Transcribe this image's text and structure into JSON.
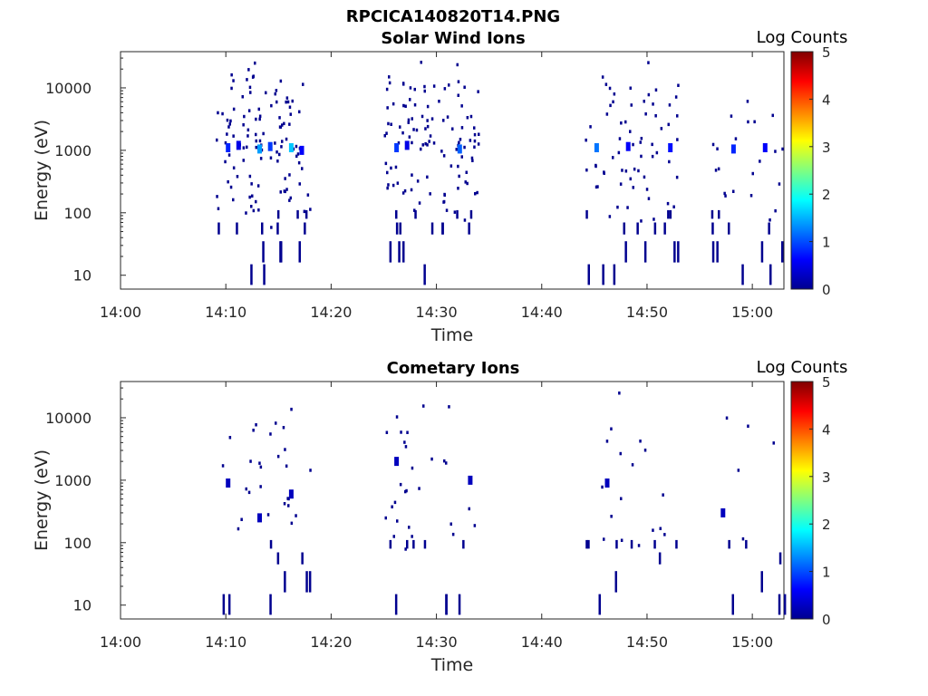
{
  "figure": {
    "filename_title": "RPCICA140820T14.PNG"
  },
  "colorbar": {
    "label": "Log Counts",
    "range": [
      0,
      5
    ],
    "ticks": [
      "0",
      "1",
      "2",
      "3",
      "4",
      "5"
    ],
    "colormap": "jet"
  },
  "chart_data": [
    {
      "type": "heatmap",
      "title": "Solar Wind Ions",
      "xlabel": "Time",
      "ylabel": "Energy (eV)",
      "xlim": [
        "14:00",
        "15:03"
      ],
      "ylim": [
        6,
        38000
      ],
      "yscale": "log",
      "x_ticks": [
        "14:00",
        "14:10",
        "14:20",
        "14:30",
        "14:40",
        "14:50",
        "15:00"
      ],
      "y_ticks": [
        "10",
        "100",
        "1000",
        "10000"
      ],
      "colorbar_label": "Log Counts",
      "clim": [
        0,
        5
      ],
      "active_intervals": [
        [
          "14:09",
          "14:18"
        ],
        [
          "14:25",
          "14:34"
        ],
        [
          "14:44",
          "14:53"
        ],
        [
          "14:56",
          "15:03"
        ]
      ],
      "cells": [
        [
          "14:10",
          1100,
          0.8
        ],
        [
          "14:11",
          1200,
          0.5
        ],
        [
          "14:13",
          1050,
          1.4
        ],
        [
          "14:14",
          1150,
          0.9
        ],
        [
          "14:16",
          1100,
          1.6
        ],
        [
          "14:17",
          1000,
          0.6
        ],
        [
          "14:26",
          1100,
          0.9
        ],
        [
          "14:27",
          1200,
          0.5
        ],
        [
          "14:32",
          1050,
          1.1
        ],
        [
          "14:45",
          1100,
          1.2
        ],
        [
          "14:48",
          1150,
          0.6
        ],
        [
          "14:52",
          1100,
          0.7
        ],
        [
          "14:58",
          1050,
          0.8
        ],
        [
          "15:01",
          1100,
          0.6
        ]
      ]
    },
    {
      "type": "heatmap",
      "title": "Cometary Ions",
      "xlabel": "Time",
      "ylabel": "Energy (eV)",
      "xlim": [
        "14:00",
        "15:03"
      ],
      "ylim": [
        6,
        38000
      ],
      "yscale": "log",
      "x_ticks": [
        "14:00",
        "14:10",
        "14:20",
        "14:30",
        "14:40",
        "14:50",
        "15:00"
      ],
      "y_ticks": [
        "10",
        "100",
        "1000",
        "10000"
      ],
      "colorbar_label": "Log Counts",
      "clim": [
        0,
        5
      ],
      "active_intervals": [
        [
          "14:09",
          "14:18"
        ],
        [
          "14:25",
          "14:34"
        ],
        [
          "14:44",
          "14:53"
        ],
        [
          "14:56",
          "15:03"
        ]
      ],
      "cells": [
        [
          "14:10",
          900,
          0.3
        ],
        [
          "14:13",
          250,
          0.3
        ],
        [
          "14:16",
          600,
          0.3
        ],
        [
          "14:26",
          2000,
          0.3
        ],
        [
          "14:33",
          1000,
          0.3
        ],
        [
          "14:46",
          900,
          0.3
        ],
        [
          "14:57",
          300,
          0.3
        ]
      ]
    }
  ]
}
